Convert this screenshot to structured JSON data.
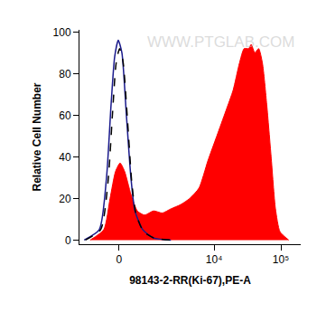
{
  "chart_data": {
    "type": "histogram_overlay",
    "x_label": "98143-2-RR(Ki-67),PE-A",
    "y_label": "Relative Cell Number",
    "annotations": [
      {
        "text": "WWW.PTGLAB.COM"
      }
    ],
    "xlim": [
      -1400,
      198000
    ],
    "xticks": [
      0,
      {
        "value": 10000,
        "label": "10⁴"
      },
      {
        "value": 100000,
        "label": "10⁵"
      }
    ],
    "ylim": [
      -2,
      101
    ],
    "yticks": [
      0,
      20,
      40,
      60,
      80,
      100
    ],
    "grid": false,
    "series": [
      {
        "type": "area",
        "color": "#ff0000",
        "line_style": "solid",
        "x": [
          -897,
          -424,
          -243,
          -96,
          24,
          144,
          317,
          509,
          755,
          1130,
          1600,
          2200,
          3110,
          4300,
          5940,
          8060,
          11000,
          15000,
          19300,
          24000,
          28200,
          33000,
          36000,
          40800,
          46500,
          53000,
          61500,
          71500,
          83000,
          97000,
          131000
        ],
        "values": [
          0,
          5,
          20,
          33,
          37,
          33,
          22,
          14,
          12,
          14,
          13,
          15,
          17,
          20,
          25,
          38,
          50,
          62,
          72,
          85,
          92,
          92,
          94,
          90,
          92,
          85,
          65,
          40,
          15,
          4,
          0
        ]
      },
      {
        "type": "line",
        "color": "#1a1a8c",
        "line_style": "solid",
        "x": [
          -1160,
          -564,
          -343,
          -216,
          -119,
          -24,
          72,
          192,
          317,
          435,
          690,
          1130,
          2200
        ],
        "values": [
          0,
          5,
          30,
          65,
          88,
          96,
          90,
          60,
          30,
          14,
          5,
          1,
          0
        ]
      },
      {
        "type": "line",
        "color": "#000000",
        "line_style": "dash",
        "x": [
          -1100,
          -520,
          -300,
          -180,
          -80,
          10,
          100,
          220,
          340,
          460,
          720,
          1150,
          2200
        ],
        "values": [
          0,
          5,
          28,
          60,
          85,
          92,
          86,
          58,
          28,
          13,
          4,
          1,
          0
        ]
      }
    ]
  }
}
